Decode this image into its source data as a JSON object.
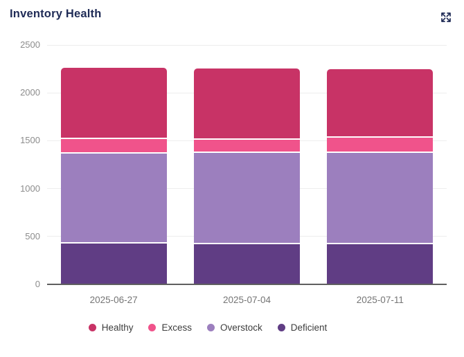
{
  "header": {
    "title": "Inventory Health"
  },
  "icons": {
    "expand_icon_color": "#1f2b56"
  },
  "chart_data": {
    "type": "bar",
    "stacked": true,
    "title": "Inventory Health",
    "categories": [
      "2025-06-27",
      "2025-07-04",
      "2025-07-11"
    ],
    "series": [
      {
        "name": "Healthy",
        "color": "#C83366",
        "values": [
          745,
          745,
          715
        ]
      },
      {
        "name": "Excess",
        "color": "#F0538B",
        "values": [
          150,
          135,
          160
        ]
      },
      {
        "name": "Overstock",
        "color": "#9C7FBE",
        "values": [
          940,
          955,
          955
        ]
      },
      {
        "name": "Deficient",
        "color": "#603D84",
        "values": [
          425,
          420,
          420
        ]
      }
    ],
    "stack_order_bottom_to_top": [
      "Deficient",
      "Overstock",
      "Excess",
      "Healthy"
    ],
    "totals": [
      2260,
      2255,
      2250
    ],
    "ylim": [
      0,
      2500
    ],
    "y_ticks": [
      0,
      500,
      1000,
      1500,
      2000,
      2500
    ],
    "xlabel": "",
    "ylabel": "",
    "grid": true,
    "legend_position": "bottom"
  },
  "style": {
    "grid_color": "#ededed",
    "axis_color": "#5f5f5f",
    "tick_text_color": "#8c8c8c",
    "xlabel_text_color": "#757575",
    "legend_text_color": "#3d3d3d",
    "title_color": "#1f2b56"
  }
}
